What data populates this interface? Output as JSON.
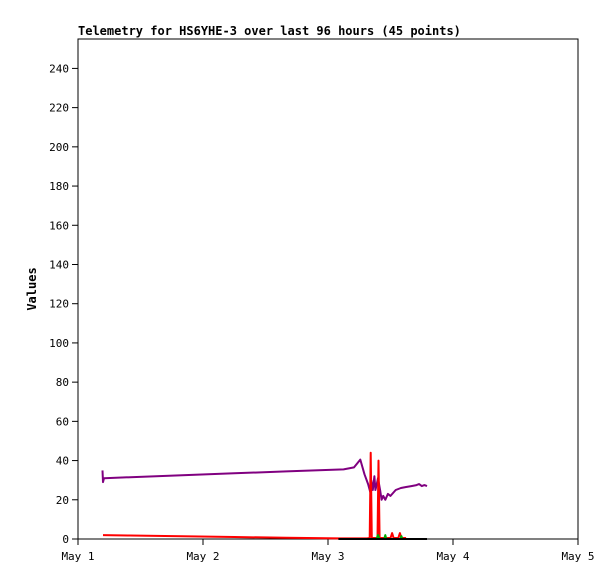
{
  "chart_data": {
    "type": "line",
    "title": "Telemetry for HS6YHE-3 over last 96 hours (45 points)",
    "xlabel": "",
    "ylabel": "Values",
    "x_unit": "hours since May 1 00:00",
    "xlim": [
      0,
      96
    ],
    "ylim": [
      0,
      255
    ],
    "x_ticks": [
      {
        "value": 0,
        "label": "May 1"
      },
      {
        "value": 24,
        "label": "May 2"
      },
      {
        "value": 48,
        "label": "May 3"
      },
      {
        "value": 72,
        "label": "May 4"
      },
      {
        "value": 96,
        "label": "May 5"
      }
    ],
    "y_ticks": [
      0,
      20,
      40,
      60,
      80,
      100,
      120,
      140,
      160,
      180,
      200,
      220,
      240
    ],
    "grid": false,
    "legend": "none",
    "series": [
      {
        "color": "#800080",
        "points": [
          [
            4.7,
            35
          ],
          [
            4.8,
            29
          ],
          [
            5.0,
            31
          ],
          [
            10,
            31.5
          ],
          [
            20,
            32.5
          ],
          [
            30,
            33.5
          ],
          [
            40,
            34.5
          ],
          [
            51,
            35.5
          ],
          [
            53,
            36.5
          ],
          [
            54.2,
            40.5
          ],
          [
            55,
            33
          ],
          [
            55.7,
            28
          ],
          [
            56.1,
            24
          ],
          [
            56.3,
            30
          ],
          [
            56.6,
            25
          ],
          [
            56.9,
            32
          ],
          [
            57.1,
            25
          ],
          [
            57.3,
            27
          ],
          [
            57.6,
            31
          ],
          [
            58,
            25
          ],
          [
            58.3,
            20
          ],
          [
            58.6,
            22
          ],
          [
            59,
            20
          ],
          [
            59.5,
            23
          ],
          [
            60,
            22
          ],
          [
            61,
            25
          ],
          [
            62,
            26
          ],
          [
            63,
            26.5
          ],
          [
            64,
            27
          ],
          [
            65,
            27.5
          ],
          [
            65.5,
            28
          ],
          [
            66,
            27
          ],
          [
            66.5,
            27.5
          ],
          [
            67,
            27
          ]
        ]
      },
      {
        "color": "#ff0000",
        "points": [
          [
            4.8,
            2
          ],
          [
            10,
            1.8
          ],
          [
            20,
            1.4
          ],
          [
            30,
            1.0
          ],
          [
            40,
            0.6
          ],
          [
            50,
            0.3
          ],
          [
            55.5,
            0.3
          ],
          [
            56,
            0.5
          ],
          [
            56.2,
            44
          ],
          [
            56.4,
            0.5
          ],
          [
            57.5,
            0.5
          ],
          [
            57.7,
            40
          ],
          [
            57.9,
            0.5
          ],
          [
            60,
            0.5
          ],
          [
            60.3,
            3
          ],
          [
            60.6,
            0.5
          ],
          [
            61.5,
            0.5
          ],
          [
            61.8,
            3
          ],
          [
            62.1,
            0.5
          ],
          [
            63,
            0.5
          ]
        ]
      },
      {
        "color": "#00aa00",
        "points": [
          [
            57.3,
            0
          ],
          [
            57.6,
            2
          ],
          [
            57.9,
            0
          ],
          [
            58.8,
            0
          ],
          [
            59.0,
            2
          ],
          [
            59.2,
            0
          ],
          [
            61.9,
            0
          ],
          [
            62.1,
            1.5
          ],
          [
            62.3,
            0
          ]
        ]
      },
      {
        "color": "#000000",
        "points": [
          [
            50,
            0
          ],
          [
            60,
            0
          ],
          [
            67,
            0
          ]
        ]
      }
    ]
  }
}
